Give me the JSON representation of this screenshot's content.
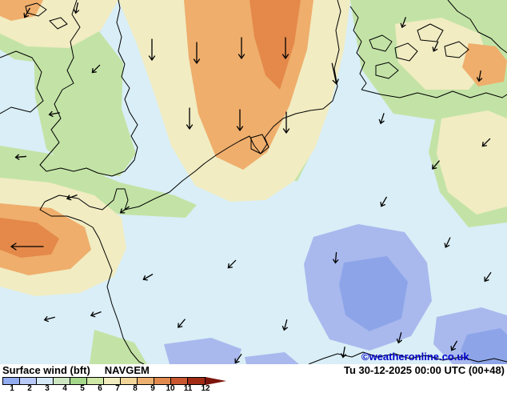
{
  "map": {
    "copyright": "©weatheronline.co.uk"
  },
  "footer": {
    "param_label": "Surface wind (bft)",
    "model": "NAVGEM",
    "valid_time": "Tu 30-12-2025 00:00 UTC (00+48)"
  },
  "legend": {
    "unit": "bft",
    "ticks": [
      "1",
      "2",
      "3",
      "4",
      "5",
      "6",
      "7",
      "8",
      "9",
      "10",
      "11",
      "12"
    ],
    "colors": [
      "#92acf0",
      "#b7c9f6",
      "#d6e9f8",
      "#cde7c2",
      "#a6d88c",
      "#cfe8a6",
      "#f1ecbe",
      "#f2d699",
      "#eeb070",
      "#e28a4e",
      "#ca5730",
      "#a22b16"
    ],
    "arrow_color": "#7c150b"
  },
  "wind_colors": {
    "bft1_blue": "#8da5e8",
    "bft2_blue": "#a9b9ee",
    "bft3_cyan": "#d9eef6",
    "bft4_green": "#c3e3a6",
    "bft5_cream": "#f1ecc2",
    "bft6_orange": "#efae6c",
    "bft7_orange": "#e4894a",
    "coast": "#000000",
    "copyright_blue": "#0000c8"
  }
}
